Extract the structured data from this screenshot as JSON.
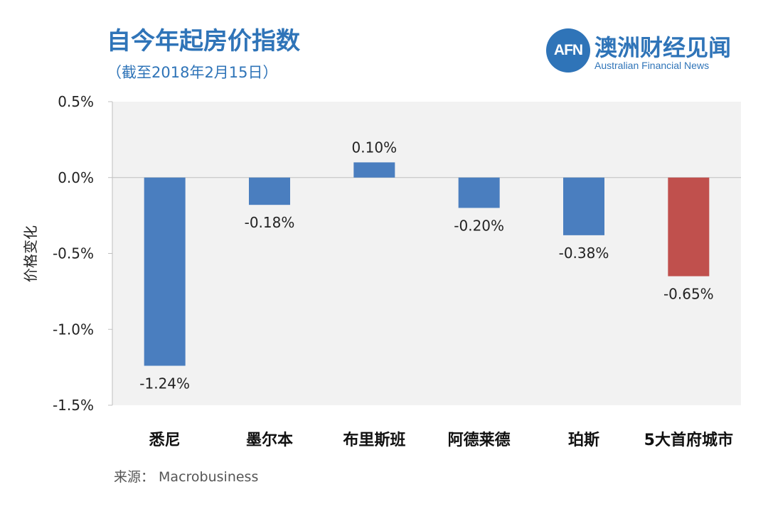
{
  "header": {
    "title": "自今年起房价指数",
    "subtitle": "（截至2018年2月15日）"
  },
  "logo": {
    "mark": "AFN",
    "name_cn": "澳洲财经见闻",
    "name_en": "Australian Financial News"
  },
  "source": "来源： Macrobusiness",
  "colors": {
    "bar_default": "#4a7ebf",
    "bar_highlight": "#c0504d",
    "plot_background": "#f2f2f2",
    "brand": "#2f74b8"
  },
  "chart_data": {
    "type": "bar",
    "title": "自今年起房价指数",
    "subtitle": "（截至2018年2月15日）",
    "xlabel": "",
    "ylabel": "价格变化",
    "ylim": [
      -1.5,
      0.5
    ],
    "yticks": [
      0.5,
      0.0,
      -0.5,
      -1.0,
      -1.5
    ],
    "ytick_labels": [
      "0.5%",
      "0.0%",
      "-0.5%",
      "-1.0%",
      "-1.5%"
    ],
    "categories": [
      "悉尼",
      "墨尔本",
      "布里斯班",
      "阿德莱德",
      "珀斯",
      "5大首府城市"
    ],
    "values": [
      -1.24,
      -0.18,
      0.1,
      -0.2,
      -0.38,
      -0.65
    ],
    "data_labels": [
      "-1.24%",
      "-0.18%",
      "0.10%",
      "-0.20%",
      "-0.38%",
      "-0.65%"
    ],
    "highlight_index": 5,
    "grid": false,
    "legend": "none"
  }
}
